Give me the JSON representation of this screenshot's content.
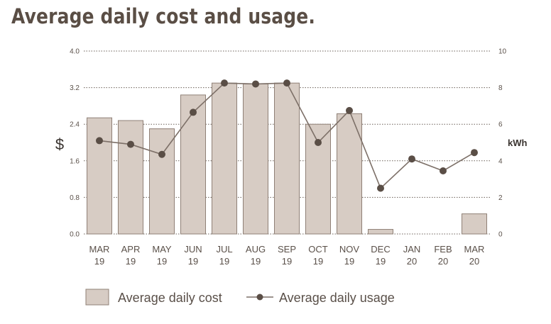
{
  "title": "Average daily cost and usage.",
  "chart_data": {
    "type": "bar",
    "categories": [
      "MAR\n19",
      "APR\n19",
      "MAY\n19",
      "JUN\n19",
      "JUL\n19",
      "AUG\n19",
      "SEP\n19",
      "OCT\n19",
      "NOV\n19",
      "DEC\n19",
      "JAN\n20",
      "FEB\n20",
      "MAR\n20"
    ],
    "series": [
      {
        "name": "Average daily cost",
        "type": "bar",
        "axis": "left",
        "values": [
          2.54,
          2.48,
          2.3,
          3.04,
          3.3,
          3.28,
          3.3,
          2.4,
          2.63,
          0.1,
          0,
          0,
          0.44
        ]
      },
      {
        "name": "Average daily usage",
        "type": "line",
        "axis": "right",
        "values": [
          5.1,
          4.9,
          4.35,
          6.65,
          8.25,
          8.2,
          8.25,
          5.0,
          6.75,
          2.5,
          4.1,
          3.45,
          4.45
        ]
      }
    ],
    "ylabel": "$",
    "ylabel_right": "kWh",
    "ylim": [
      0,
      4.0
    ],
    "y_ticks": [
      "0.0",
      "0.8",
      "1.6",
      "2.4",
      "3.2",
      "4.0"
    ],
    "ylim_right": [
      0,
      10
    ],
    "y_ticks_right": [
      "0",
      "2",
      "4",
      "6",
      "8",
      "10"
    ],
    "grid": "dotted horizontal",
    "legend": "bottom"
  },
  "colors": {
    "bar_fill": "#d7ccc4",
    "bar_stroke": "#8f8076",
    "line": "#7d7068",
    "marker": "#5a4e46",
    "grid": "#6b6058",
    "title": "#5a4e45",
    "text": "#5a5049"
  }
}
